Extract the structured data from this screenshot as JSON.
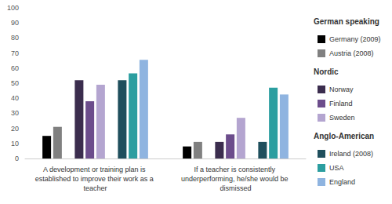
{
  "chart_data": {
    "type": "bar",
    "categories": [
      "A development or training plan is established to improve their work as a teacher",
      "If a teacher is consistently underperforming, he/she would be dismissed"
    ],
    "series": [
      {
        "name": "Germany (2009)",
        "group": "German speaking",
        "color": "#000000",
        "values": [
          15,
          8
        ]
      },
      {
        "name": "Austria (2008)",
        "group": "German speaking",
        "color": "#808080",
        "values": [
          21,
          11
        ]
      },
      {
        "name": "Norway",
        "group": "Nordic",
        "color": "#3b2d4e",
        "values": [
          52,
          11
        ]
      },
      {
        "name": "Finland",
        "group": "Nordic",
        "color": "#6c4d8c",
        "values": [
          38,
          16
        ]
      },
      {
        "name": "Sweden",
        "group": "Nordic",
        "color": "#b4a5d0",
        "values": [
          49,
          27
        ]
      },
      {
        "name": "Ireland (2008)",
        "group": "Anglo-American",
        "color": "#1f4f5d",
        "values": [
          52,
          11
        ]
      },
      {
        "name": "USA",
        "group": "Anglo-American",
        "color": "#2b9ea0",
        "values": [
          56.5,
          47
        ]
      },
      {
        "name": "England",
        "group": "Anglo-American",
        "color": "#8fb4e0",
        "values": [
          65.5,
          42.5
        ]
      }
    ],
    "ylim": [
      0,
      100
    ],
    "yticks": [
      0,
      10,
      20,
      30,
      40,
      50,
      60,
      70,
      80,
      90,
      100
    ],
    "grid": false,
    "legend": "right"
  }
}
